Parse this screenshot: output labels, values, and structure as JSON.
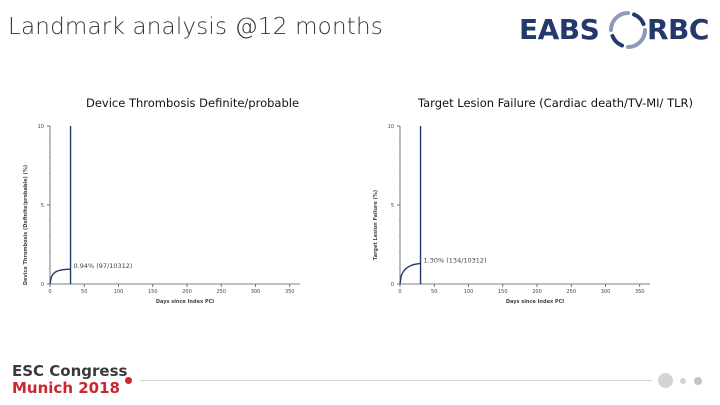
{
  "slide": {
    "title": "Landmark analysis @12 months"
  },
  "logo": {
    "left_text": "EABS",
    "right_text": "RBC",
    "color": "#24396b",
    "mark_color": "#8a9ab8",
    "icon": "ring-logo-icon"
  },
  "chart_data": [
    {
      "type": "line",
      "title": "Device Thrombosis Definite/probable",
      "xlabel": "Days since Index PCI",
      "ylabel": "Device Thrombosis (Definite/probable) (%)",
      "xlim": [
        0,
        365
      ],
      "ylim": [
        0,
        10
      ],
      "x_ticks": [
        0,
        50,
        100,
        150,
        200,
        250,
        300,
        350
      ],
      "y_ticks": [
        0,
        5,
        10
      ],
      "landmark_day": 30,
      "series": [
        {
          "x": [
            0,
            2,
            5,
            8,
            12,
            16,
            20,
            25,
            30
          ],
          "y": [
            0,
            0.45,
            0.65,
            0.76,
            0.84,
            0.88,
            0.91,
            0.93,
            0.94
          ]
        }
      ],
      "annotation": "0.94% (97/10312)",
      "color": "#24396b"
    },
    {
      "type": "line",
      "title": "Target Lesion Failure (Cardiac death/TV-MI/ TLR)",
      "xlabel": "Days since Index PCI",
      "ylabel": "Target Lesion Failure (%)",
      "xlim": [
        0,
        365
      ],
      "ylim": [
        0,
        10
      ],
      "x_ticks": [
        0,
        50,
        100,
        150,
        200,
        250,
        300,
        350
      ],
      "y_ticks": [
        0,
        5,
        10
      ],
      "landmark_day": 30,
      "series": [
        {
          "x": [
            0,
            2,
            5,
            8,
            12,
            16,
            20,
            25,
            30
          ],
          "y": [
            0,
            0.55,
            0.8,
            0.95,
            1.08,
            1.17,
            1.23,
            1.27,
            1.3
          ]
        }
      ],
      "annotation": "1.30% (134/10312)",
      "color": "#24396b"
    }
  ],
  "footer": {
    "line1": "ESC Congress",
    "line2": "Munich 2018",
    "accent_color": "#c8282e"
  }
}
